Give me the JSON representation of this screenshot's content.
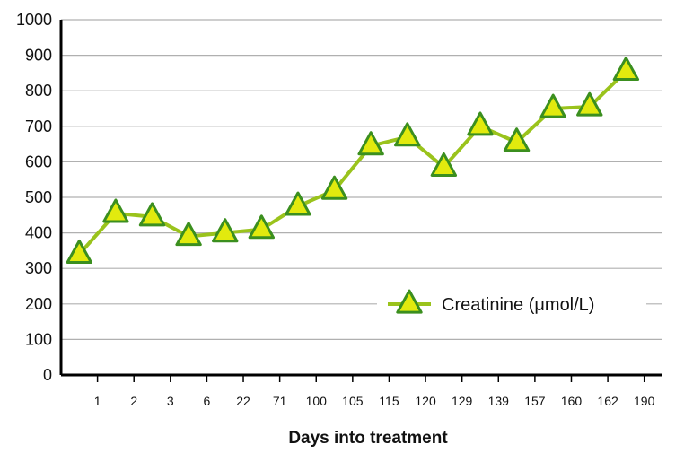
{
  "chart_data": {
    "type": "line",
    "xlabel": "Days into treatment",
    "ylabel": "",
    "ylim": [
      0,
      1000
    ],
    "yticks": [
      0,
      100,
      200,
      300,
      400,
      500,
      600,
      700,
      800,
      900,
      1000
    ],
    "x_tick_labels": [
      "1",
      "2",
      "3",
      "6",
      "22",
      "71",
      "100",
      "105",
      "115",
      "120",
      "129",
      "139",
      "157",
      "160",
      "162",
      "190"
    ],
    "grid": true,
    "legend_position": "bottom-right",
    "series": [
      {
        "name": "Creatinine (μmol/L)",
        "marker": "triangle",
        "values": [
          340,
          455,
          445,
          390,
          400,
          410,
          475,
          520,
          645,
          670,
          585,
          700,
          655,
          750,
          755,
          855
        ]
      }
    ],
    "colors": {
      "line": "#9ac31c",
      "marker_fill": "#e2ea0e",
      "marker_stroke": "#3b8f1f",
      "grid": "#b0b0b0",
      "axis": "#000000"
    }
  }
}
